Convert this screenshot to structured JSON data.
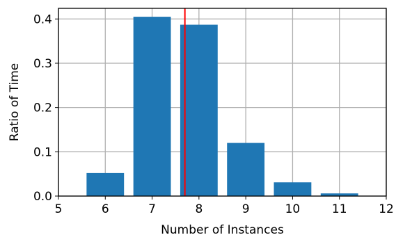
{
  "chart_data": {
    "type": "bar",
    "title": "",
    "xlabel": "Number of Instances",
    "ylabel": "Ratio of Time",
    "x": [
      6,
      7,
      8,
      9,
      10,
      11
    ],
    "values": [
      0.052,
      0.405,
      0.387,
      0.12,
      0.031,
      0.006
    ],
    "bar_color": "#1f77b4",
    "xlim": [
      5,
      12
    ],
    "ylim": [
      0,
      0.424
    ],
    "xticks": [
      5,
      6,
      7,
      8,
      9,
      10,
      11,
      12
    ],
    "xtick_labels": [
      "5",
      "6",
      "7",
      "8",
      "9",
      "10",
      "11",
      "12"
    ],
    "yticks": [
      0.0,
      0.1,
      0.2,
      0.3,
      0.4
    ],
    "ytick_labels": [
      "0.0",
      "0.1",
      "0.2",
      "0.3",
      "0.4"
    ],
    "grid": true,
    "vline": {
      "x": 7.7,
      "color": "#ff0000"
    },
    "legend": "none"
  }
}
